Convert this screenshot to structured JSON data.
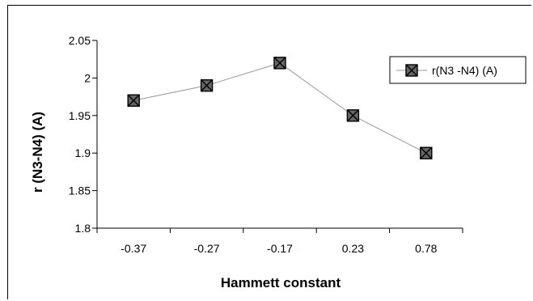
{
  "chart_data": {
    "type": "line",
    "categories": [
      "-0.37",
      "-0.27",
      "-0.17",
      "0.23",
      "0.78"
    ],
    "series": [
      {
        "name": "r(N3 -N4) (A)",
        "values": [
          1.97,
          1.99,
          2.02,
          1.95,
          1.9
        ],
        "color": "#999999",
        "marker": "square-x"
      }
    ],
    "title": "",
    "xlabel": "Hammett constant",
    "ylabel": "r (N3-N4) (A)",
    "ylim": [
      1.8,
      2.05
    ],
    "yticks": [
      "1.8",
      "1.85",
      "1.9",
      "1.95",
      "2",
      "2.05"
    ],
    "grid": false,
    "legend": "right"
  }
}
